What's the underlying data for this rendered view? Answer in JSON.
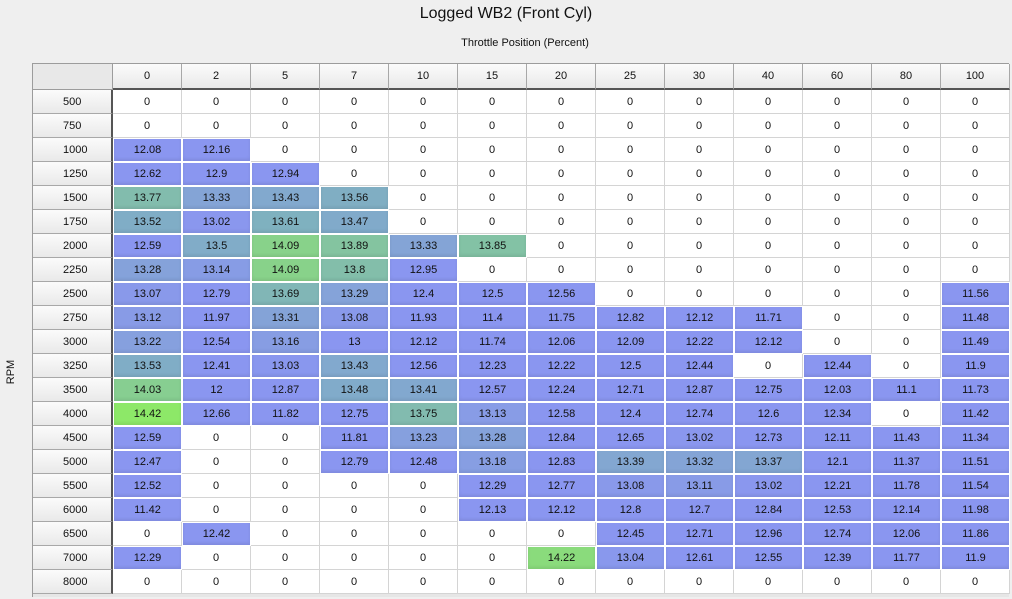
{
  "title": "Logged WB2 (Front Cyl)",
  "xlabel": "Throttle Position (Percent)",
  "ylabel": "RPM",
  "columns": [
    "0",
    "2",
    "5",
    "7",
    "10",
    "15",
    "20",
    "25",
    "30",
    "40",
    "60",
    "80",
    "100"
  ],
  "rows": [
    {
      "rpm": "500",
      "values": [
        "0",
        "0",
        "0",
        "0",
        "0",
        "0",
        "0",
        "0",
        "0",
        "0",
        "0",
        "0",
        "0"
      ]
    },
    {
      "rpm": "750",
      "values": [
        "0",
        "0",
        "0",
        "0",
        "0",
        "0",
        "0",
        "0",
        "0",
        "0",
        "0",
        "0",
        "0"
      ]
    },
    {
      "rpm": "1000",
      "values": [
        "12.08",
        "12.16",
        "0",
        "0",
        "0",
        "0",
        "0",
        "0",
        "0",
        "0",
        "0",
        "0",
        "0"
      ]
    },
    {
      "rpm": "1250",
      "values": [
        "12.62",
        "12.9",
        "12.94",
        "0",
        "0",
        "0",
        "0",
        "0",
        "0",
        "0",
        "0",
        "0",
        "0"
      ]
    },
    {
      "rpm": "1500",
      "values": [
        "13.77",
        "13.33",
        "13.43",
        "13.56",
        "0",
        "0",
        "0",
        "0",
        "0",
        "0",
        "0",
        "0",
        "0"
      ]
    },
    {
      "rpm": "1750",
      "values": [
        "13.52",
        "13.02",
        "13.61",
        "13.47",
        "0",
        "0",
        "0",
        "0",
        "0",
        "0",
        "0",
        "0",
        "0"
      ]
    },
    {
      "rpm": "2000",
      "values": [
        "12.59",
        "13.5",
        "14.09",
        "13.89",
        "13.33",
        "13.85",
        "0",
        "0",
        "0",
        "0",
        "0",
        "0",
        "0"
      ]
    },
    {
      "rpm": "2250",
      "values": [
        "13.28",
        "13.14",
        "14.09",
        "13.8",
        "12.95",
        "0",
        "0",
        "0",
        "0",
        "0",
        "0",
        "0",
        "0"
      ]
    },
    {
      "rpm": "2500",
      "values": [
        "13.07",
        "12.79",
        "13.69",
        "13.29",
        "12.4",
        "12.5",
        "12.56",
        "0",
        "0",
        "0",
        "0",
        "0",
        "11.56"
      ]
    },
    {
      "rpm": "2750",
      "values": [
        "13.12",
        "11.97",
        "13.31",
        "13.08",
        "11.93",
        "11.4",
        "11.75",
        "12.82",
        "12.12",
        "11.71",
        "0",
        "0",
        "11.48"
      ]
    },
    {
      "rpm": "3000",
      "values": [
        "13.22",
        "12.54",
        "13.16",
        "13",
        "12.12",
        "11.74",
        "12.06",
        "12.09",
        "12.22",
        "12.12",
        "0",
        "0",
        "11.49"
      ]
    },
    {
      "rpm": "3250",
      "values": [
        "13.53",
        "12.41",
        "13.03",
        "13.43",
        "12.56",
        "12.23",
        "12.22",
        "12.5",
        "12.44",
        "0",
        "12.44",
        "0",
        "11.9"
      ]
    },
    {
      "rpm": "3500",
      "values": [
        "14.03",
        "12",
        "12.87",
        "13.48",
        "13.41",
        "12.57",
        "12.24",
        "12.71",
        "12.87",
        "12.75",
        "12.03",
        "11.1",
        "11.73"
      ]
    },
    {
      "rpm": "4000",
      "values": [
        "14.42",
        "12.66",
        "11.82",
        "12.75",
        "13.75",
        "13.13",
        "12.58",
        "12.4",
        "12.74",
        "12.6",
        "12.34",
        "0",
        "11.42"
      ]
    },
    {
      "rpm": "4500",
      "values": [
        "12.59",
        "0",
        "0",
        "11.81",
        "13.23",
        "13.28",
        "12.84",
        "12.65",
        "13.02",
        "12.73",
        "12.11",
        "11.43",
        "11.34"
      ]
    },
    {
      "rpm": "5000",
      "values": [
        "12.47",
        "0",
        "0",
        "12.79",
        "12.48",
        "13.18",
        "12.83",
        "13.39",
        "13.32",
        "13.37",
        "12.1",
        "11.37",
        "11.51"
      ]
    },
    {
      "rpm": "5500",
      "values": [
        "12.52",
        "0",
        "0",
        "0",
        "0",
        "12.29",
        "12.77",
        "13.08",
        "13.11",
        "13.02",
        "12.21",
        "11.78",
        "11.54"
      ]
    },
    {
      "rpm": "6000",
      "values": [
        "11.42",
        "0",
        "0",
        "0",
        "0",
        "12.13",
        "12.12",
        "12.8",
        "12.7",
        "12.84",
        "12.53",
        "12.14",
        "11.98"
      ]
    },
    {
      "rpm": "6500",
      "values": [
        "0",
        "12.42",
        "0",
        "0",
        "0",
        "0",
        "0",
        "12.45",
        "12.71",
        "12.96",
        "12.74",
        "12.06",
        "11.86"
      ]
    },
    {
      "rpm": "7000",
      "values": [
        "12.29",
        "0",
        "0",
        "0",
        "0",
        "0",
        "14.22",
        "13.04",
        "12.61",
        "12.55",
        "12.39",
        "11.77",
        "11.9"
      ]
    },
    {
      "rpm": "8000",
      "values": [
        "0",
        "0",
        "0",
        "0",
        "0",
        "0",
        "0",
        "0",
        "0",
        "0",
        "0",
        "0",
        "0"
      ]
    }
  ],
  "colors": {
    "zero": "#ffffff",
    "lean": "#8a96f0",
    "mid": "#7fb0c0",
    "rich": "#8de868"
  }
}
